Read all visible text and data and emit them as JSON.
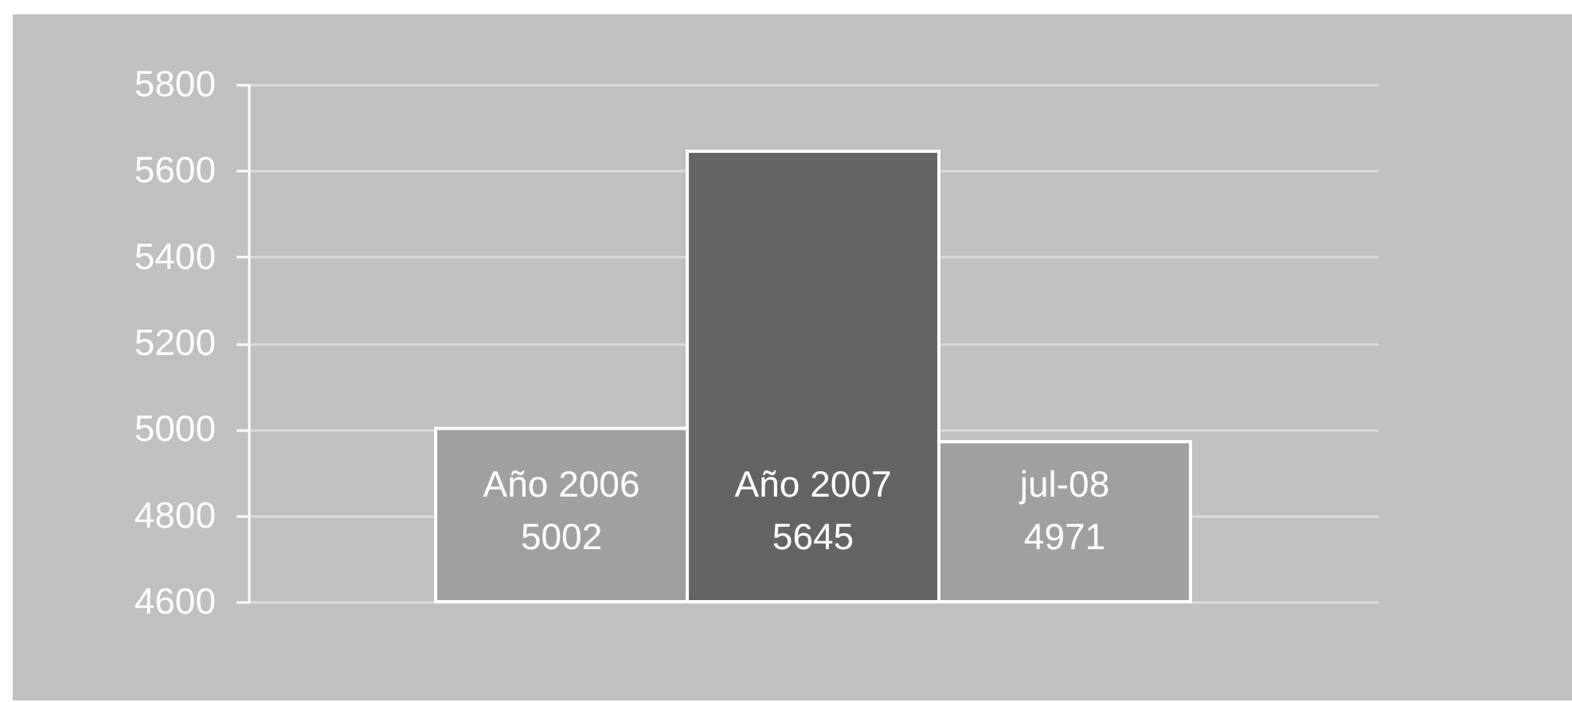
{
  "chart_data": {
    "type": "bar",
    "categories": [
      "Año 2006",
      "Año 2007",
      "jul-08"
    ],
    "values": [
      5002,
      5645,
      4971
    ],
    "colors": [
      "#a0a0a0",
      "#646464",
      "#a0a0a0"
    ],
    "ylim": [
      4600,
      5800
    ],
    "yticks": [
      4600,
      4800,
      5000,
      5200,
      5400,
      5600,
      5800
    ],
    "grid": "y",
    "data_labels": true,
    "tick_labels": "y"
  }
}
